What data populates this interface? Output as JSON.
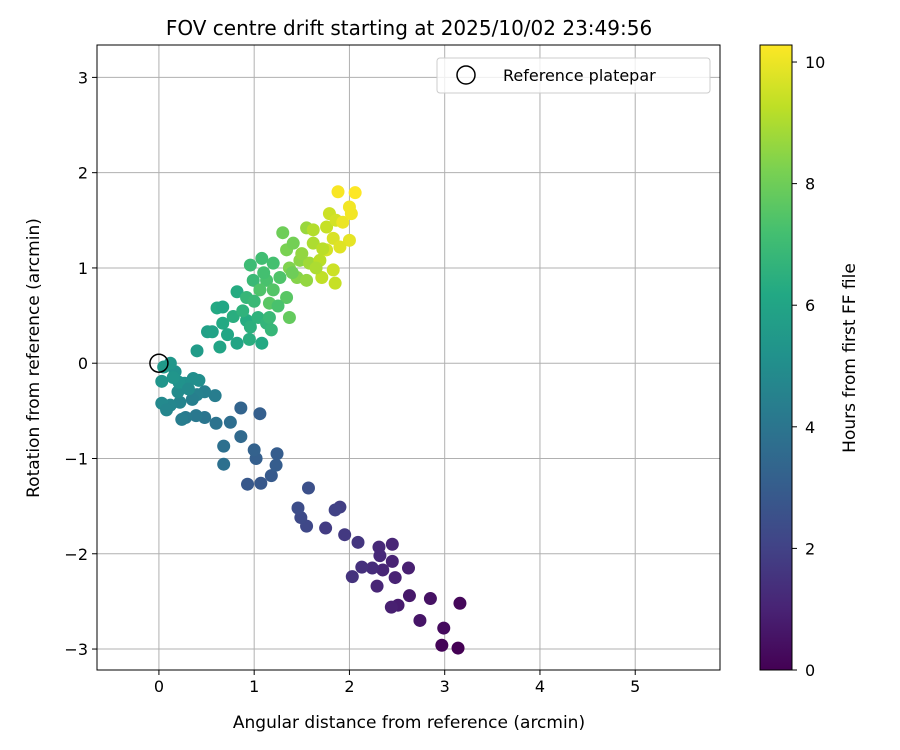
{
  "chart_data": {
    "type": "scatter",
    "title": "FOV centre drift starting at 2025/10/02 23:49:56",
    "xlabel": "Angular distance from reference (arcmin)",
    "ylabel": "Rotation from reference (arcmin)",
    "xlim": [
      -0.65,
      5.89
    ],
    "ylim": [
      -3.22,
      3.34
    ],
    "xticks": [
      0,
      1,
      2,
      3,
      4,
      5
    ],
    "yticks": [
      -3,
      -2,
      -1,
      0,
      1,
      2,
      3
    ],
    "grid": true,
    "legend": {
      "placement": "top-right",
      "entries": [
        "Reference platepar"
      ]
    },
    "reference_point": [
      0,
      0
    ],
    "colorbar": {
      "label": "Hours from first FF file",
      "range": [
        0,
        10.28
      ],
      "ticks": [
        0,
        2,
        4,
        6,
        8,
        10
      ],
      "colormap": "viridis"
    },
    "points_xy_hours": [
      [
        3.16,
        -2.52,
        0.2
      ],
      [
        2.99,
        -2.78,
        0.3
      ],
      [
        2.97,
        -2.96,
        0.1
      ],
      [
        3.14,
        -2.99,
        0.0
      ],
      [
        2.85,
        -2.47,
        0.5
      ],
      [
        2.74,
        -2.7,
        0.6
      ],
      [
        2.63,
        -2.44,
        0.7
      ],
      [
        2.51,
        -2.54,
        0.8
      ],
      [
        2.44,
        -2.56,
        0.9
      ],
      [
        2.62,
        -2.15,
        0.9
      ],
      [
        2.48,
        -2.25,
        1.0
      ],
      [
        2.29,
        -2.34,
        1.1
      ],
      [
        2.45,
        -2.08,
        1.0
      ],
      [
        2.32,
        -2.02,
        1.2
      ],
      [
        2.31,
        -1.93,
        1.2
      ],
      [
        2.45,
        -1.9,
        1.1
      ],
      [
        2.35,
        -2.17,
        1.1
      ],
      [
        2.24,
        -2.15,
        1.3
      ],
      [
        2.13,
        -2.14,
        1.4
      ],
      [
        2.03,
        -2.24,
        1.5
      ],
      [
        2.09,
        -1.88,
        1.6
      ],
      [
        1.95,
        -1.8,
        1.7
      ],
      [
        1.75,
        -1.73,
        1.8
      ],
      [
        1.9,
        -1.51,
        1.9
      ],
      [
        1.85,
        -1.54,
        2.0
      ],
      [
        1.55,
        -1.71,
        2.2
      ],
      [
        1.49,
        -1.62,
        2.3
      ],
      [
        1.46,
        -1.52,
        2.4
      ],
      [
        1.57,
        -1.31,
        2.5
      ],
      [
        0.93,
        -1.27,
        2.8
      ],
      [
        1.07,
        -1.26,
        2.8
      ],
      [
        1.18,
        -1.18,
        2.9
      ],
      [
        1.23,
        -1.07,
        3.0
      ],
      [
        1.24,
        -0.95,
        3.0
      ],
      [
        1.02,
        -1.0,
        3.1
      ],
      [
        1.0,
        -0.91,
        3.2
      ],
      [
        0.86,
        -0.47,
        3.3
      ],
      [
        1.06,
        -0.53,
        3.1
      ],
      [
        0.86,
        -0.77,
        3.5
      ],
      [
        0.75,
        -0.62,
        3.7
      ],
      [
        0.68,
        -0.87,
        3.8
      ],
      [
        0.68,
        -1.06,
        3.8
      ],
      [
        0.6,
        -0.63,
        3.9
      ],
      [
        0.48,
        -0.57,
        4.0
      ],
      [
        0.39,
        -0.55,
        4.1
      ],
      [
        0.28,
        -0.57,
        4.2
      ],
      [
        0.24,
        -0.59,
        4.3
      ],
      [
        0.59,
        -0.34,
        4.3
      ],
      [
        0.48,
        -0.3,
        4.4
      ],
      [
        0.4,
        -0.33,
        4.5
      ],
      [
        0.35,
        -0.38,
        4.4
      ],
      [
        0.22,
        -0.41,
        4.6
      ],
      [
        0.12,
        -0.44,
        4.7
      ],
      [
        0.03,
        -0.42,
        4.8
      ],
      [
        0.08,
        -0.49,
        4.7
      ],
      [
        0.2,
        -0.3,
        4.9
      ],
      [
        0.36,
        -0.16,
        5.0
      ],
      [
        0.27,
        -0.21,
        5.1
      ],
      [
        0.21,
        -0.2,
        5.2
      ],
      [
        0.03,
        -0.19,
        5.3
      ],
      [
        0.17,
        -0.09,
        5.2
      ],
      [
        0.12,
        0.0,
        5.4
      ],
      [
        0.05,
        -0.04,
        5.5
      ],
      [
        0.42,
        -0.18,
        5.0
      ],
      [
        0.31,
        -0.27,
        4.9
      ],
      [
        0.15,
        -0.15,
        5.3
      ],
      [
        0.4,
        0.13,
        5.6
      ],
      [
        0.64,
        0.17,
        6.0
      ],
      [
        0.51,
        0.33,
        5.8
      ],
      [
        0.56,
        0.33,
        5.9
      ],
      [
        0.61,
        0.58,
        6.2
      ],
      [
        0.67,
        0.59,
        6.1
      ],
      [
        0.82,
        0.75,
        6.3
      ],
      [
        0.82,
        0.21,
        6.0
      ],
      [
        1.08,
        0.21,
        6.2
      ],
      [
        0.67,
        0.42,
        6.2
      ],
      [
        0.78,
        0.49,
        6.4
      ],
      [
        0.92,
        0.45,
        6.3
      ],
      [
        0.96,
        0.38,
        6.5
      ],
      [
        1.04,
        0.48,
        6.6
      ],
      [
        1.13,
        0.42,
        6.7
      ],
      [
        1.16,
        0.48,
        6.9
      ],
      [
        0.92,
        0.69,
        6.8
      ],
      [
        0.99,
        0.87,
        6.9
      ],
      [
        0.96,
        1.03,
        7.0
      ],
      [
        1.08,
        1.1,
        7.1
      ],
      [
        1.2,
        1.05,
        7.2
      ],
      [
        1.13,
        0.87,
        7.3
      ],
      [
        1.27,
        0.9,
        7.4
      ],
      [
        1.06,
        0.77,
        7.4
      ],
      [
        1.2,
        0.77,
        7.5
      ],
      [
        1.34,
        0.69,
        7.6
      ],
      [
        1.37,
        0.48,
        7.8
      ],
      [
        1.16,
        0.63,
        7.6
      ],
      [
        1.3,
        1.37,
        8.0
      ],
      [
        1.34,
        1.19,
        8.2
      ],
      [
        1.41,
        1.26,
        8.1
      ],
      [
        1.37,
        1.0,
        8.3
      ],
      [
        1.48,
        1.08,
        8.5
      ],
      [
        1.45,
        0.9,
        8.4
      ],
      [
        1.55,
        0.87,
        8.6
      ],
      [
        1.58,
        1.05,
        8.8
      ],
      [
        1.55,
        1.42,
        8.7
      ],
      [
        1.62,
        1.26,
        9.0
      ],
      [
        1.69,
        1.08,
        9.2
      ],
      [
        1.71,
        0.9,
        9.3
      ],
      [
        1.62,
        1.4,
        9.1
      ],
      [
        1.76,
        1.43,
        9.4
      ],
      [
        1.79,
        1.57,
        9.5
      ],
      [
        1.86,
        1.5,
        9.6
      ],
      [
        1.83,
        1.31,
        9.7
      ],
      [
        1.76,
        1.19,
        9.6
      ],
      [
        1.83,
        0.98,
        9.5
      ],
      [
        1.85,
        0.84,
        9.4
      ],
      [
        2.0,
        1.29,
        9.9
      ],
      [
        1.9,
        1.22,
        9.8
      ],
      [
        1.93,
        1.48,
        10.0
      ],
      [
        2.0,
        1.64,
        10.1
      ],
      [
        2.02,
        1.57,
        10.1
      ],
      [
        1.88,
        1.8,
        10.2
      ],
      [
        2.06,
        1.79,
        10.3
      ],
      [
        0.72,
        0.3,
        6.1
      ],
      [
        0.88,
        0.55,
        6.6
      ],
      [
        1.0,
        0.65,
        6.9
      ],
      [
        1.1,
        0.95,
        7.2
      ],
      [
        1.25,
        0.6,
        7.3
      ],
      [
        1.5,
        1.15,
        8.6
      ],
      [
        1.65,
        1.0,
        9.0
      ],
      [
        1.72,
        1.2,
        9.2
      ],
      [
        1.4,
        0.95,
        8.0
      ],
      [
        0.95,
        0.25,
        6.4
      ],
      [
        1.18,
        0.35,
        6.8
      ]
    ]
  }
}
